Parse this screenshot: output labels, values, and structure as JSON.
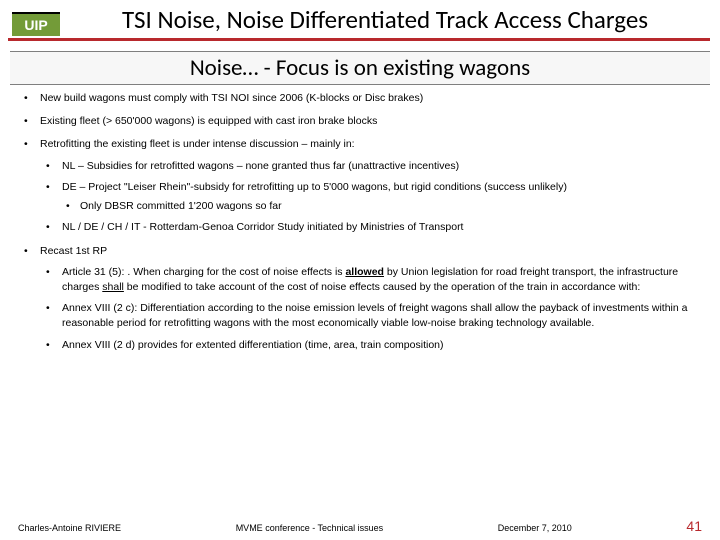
{
  "logo_text": "UIP",
  "title": "TSI Noise, Noise Differentiated Track Access Charges",
  "subtitle": "Noise… - Focus is on existing wagons",
  "bullets": {
    "b1": "New build wagons must comply with TSI NOI since 2006 (K-blocks or Disc brakes)",
    "b2": "Existing fleet (> 650'000 wagons) is equipped with cast iron brake blocks",
    "b3": "Retrofitting the existing fleet is under intense discussion – mainly in:",
    "b3a": "NL – Subsidies for retrofitted wagons – none granted thus far (unattractive incentives)",
    "b3b": "DE – Project \"Leiser Rhein\"-subsidy for retrofitting up to 5'000 wagons, but rigid conditions (success unlikely)",
    "b3b1": "Only DBSR committed 1'200 wagons so far",
    "b3c": "NL / DE / CH / IT -  Rotterdam-Genoa Corridor Study initiated by Ministries of Transport",
    "b4": "Recast 1st RP",
    "b4a_pre": "Article 31 (5): . When charging for the cost of noise effects is ",
    "b4a_allowed": "allowed",
    "b4a_mid": " by Union legislation for road freight transport, the infrastructure charges ",
    "b4a_shall": "shall",
    "b4a_post": " be modified to take account of the cost of noise effects caused by the operation of the train in accordance with:",
    "b4b": "Annex VIII (2 c): Differentiation according to the noise emission levels of freight wagons shall allow the payback of investments within a reasonable period for retrofitting wagons with the most economically viable low-noise braking technology available.",
    "b4c": "Annex VIII (2 d) provides for extented differentiation (time, area, train composition)"
  },
  "footer": {
    "author": "Charles-Antoine RIVIERE",
    "event": "MVME conference - Technical issues",
    "date": "December 7, 2010",
    "page": "41"
  },
  "colors": {
    "accent_red": "#b8292d",
    "logo_green": "#739b38"
  }
}
